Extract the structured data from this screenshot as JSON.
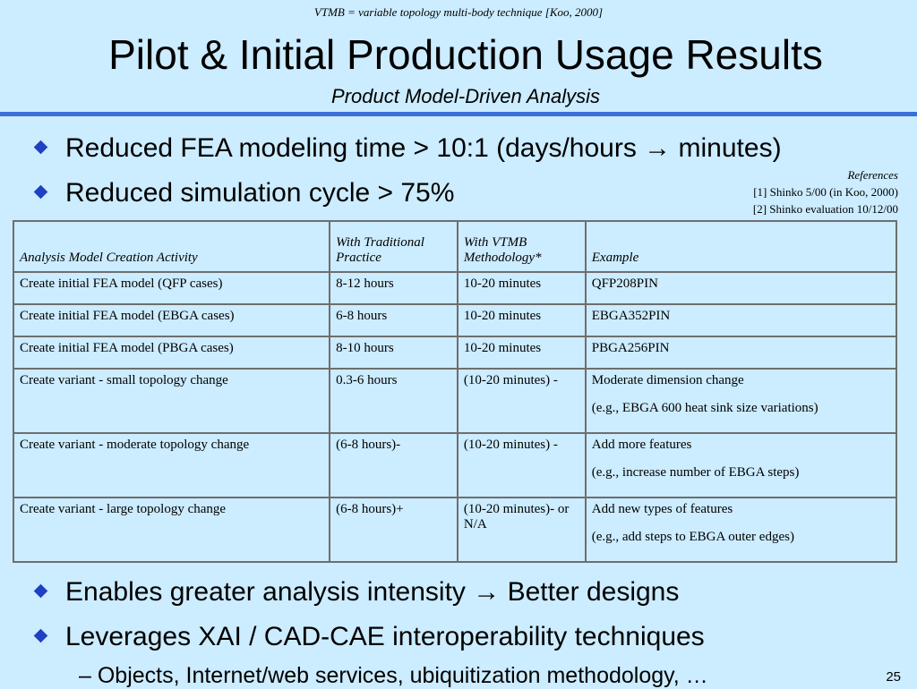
{
  "top_note": "VTMB = variable topology multi-body technique [Koo, 2000]",
  "title": "Pilot & Initial Production Usage Results",
  "subtitle": "Product Model-Driven Analysis",
  "bullets_top": [
    "Reduced FEA modeling time > 10:1 (days/hours → minutes)",
    "Reduced simulation cycle > 75%"
  ],
  "references": {
    "heading": "References",
    "items": [
      "[1] Shinko 5/00 (in Koo, 2000)",
      "[2] Shinko evaluation 10/12/00"
    ]
  },
  "table": {
    "headers": [
      "Analysis Model Creation Activity",
      "With Traditional Practice",
      "With VTMB Methodology*",
      "Example"
    ],
    "rows": [
      {
        "activity": "Create initial FEA model (QFP cases)",
        "traditional": "8-12 hours",
        "vtmb": "10-20 minutes",
        "example1": "QFP208PIN",
        "example2": ""
      },
      {
        "activity": "Create initial FEA model (EBGA cases)",
        "traditional": "6-8 hours",
        "vtmb": "10-20 minutes",
        "example1": "EBGA352PIN",
        "example2": ""
      },
      {
        "activity": "Create initial FEA model (PBGA cases)",
        "traditional": "8-10 hours",
        "vtmb": "10-20 minutes",
        "example1": "PBGA256PIN",
        "example2": ""
      },
      {
        "activity": "Create variant - small topology change",
        "traditional": "0.3-6 hours",
        "vtmb": "(10-20 minutes) -",
        "example1": "Moderate dimension change",
        "example2": "(e.g., EBGA 600 heat sink size variations)"
      },
      {
        "activity": "Create variant - moderate topology change",
        "traditional": "(6-8 hours)-",
        "vtmb": "(10-20 minutes) -",
        "example1": "Add more features",
        "example2": "(e.g., increase number of EBGA steps)"
      },
      {
        "activity": "Create variant - large topology change",
        "traditional": "(6-8 hours)+",
        "vtmb": "(10-20 minutes)- or N/A",
        "example1": "Add new types of features",
        "example2": "(e.g., add steps to EBGA outer edges)"
      }
    ]
  },
  "bullets_bottom": [
    "Enables greater analysis intensity → Better designs",
    "Leverages XAI / CAD-CAE interoperability techniques"
  ],
  "sub_bullet": "–  Objects, Internet/web services, ubiquitization methodology, …",
  "page_number": "25",
  "colors": {
    "background": "#ccecff",
    "accent_rule": "#3a6fd8",
    "bullet": "#1f3fc4"
  }
}
